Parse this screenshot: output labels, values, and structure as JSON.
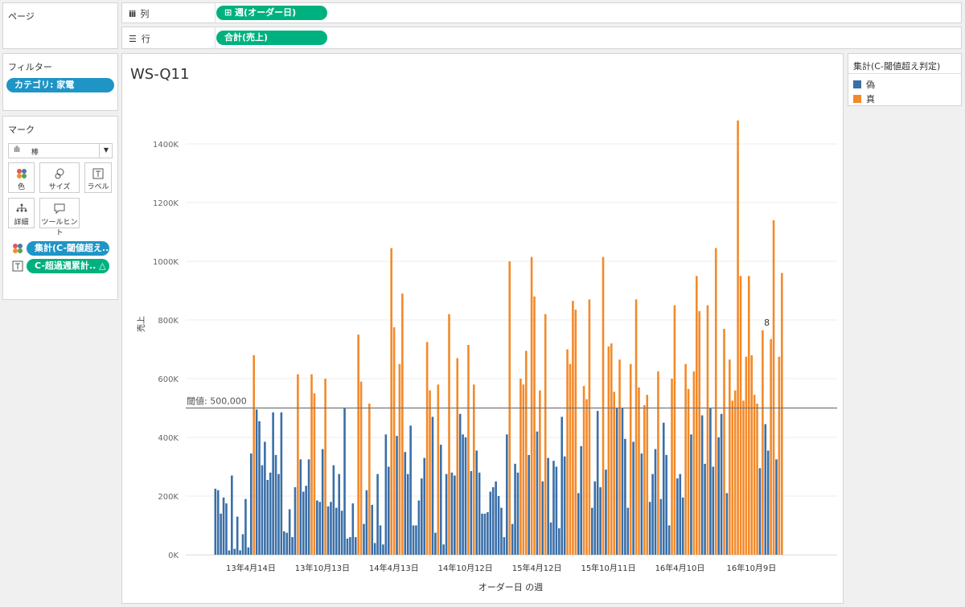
{
  "shelves": {
    "pages_label": "ページ",
    "columns_label": "列",
    "rows_label": "行",
    "column_pill": "⊞ 週(オーダー日)",
    "row_pill": "合計(売上)"
  },
  "filters": {
    "title": "フィルター",
    "pill": "カテゴリ: 家電"
  },
  "marks": {
    "title": "マーク",
    "type_value": "棒",
    "cards": [
      "色",
      "サイズ",
      "ラベル",
      "詳細",
      "ツールヒント"
    ],
    "pills": [
      "集計(C-閾値超え..",
      "C-超過週累計.. △"
    ]
  },
  "legend": {
    "title": "集計(C-閾値超え判定)",
    "items": [
      {
        "label": "偽",
        "color": "#3a6fa8"
      },
      {
        "label": "真",
        "color": "#f28a2b"
      }
    ]
  },
  "chart_data": {
    "type": "bar",
    "title": "WS-Q11",
    "xlabel": "オーダー日 の週",
    "ylabel": "売上",
    "ylim": [
      0,
      1500000
    ],
    "yticks": [
      0,
      200000,
      400000,
      600000,
      800000,
      1000000,
      1200000,
      1400000
    ],
    "ytick_labels": [
      "0K",
      "200K",
      "400K",
      "600K",
      "800K",
      "1000K",
      "1200K",
      "1400K"
    ],
    "x_tick_labels": [
      "13年4月14日",
      "13年10月13日",
      "14年4月13日",
      "14年10月12日",
      "15年4月12日",
      "15年10月11日",
      "16年4月10日",
      "16年10月9日"
    ],
    "x_tick_positions": [
      13,
      39,
      65,
      91,
      117,
      143,
      169,
      195
    ],
    "reference_line": {
      "value": 500000,
      "label": "閾値: 500,000"
    },
    "annotation": {
      "index": 199,
      "text": "8"
    },
    "series_colors": {
      "false": "#3a6fa8",
      "true": "#f28a2b"
    },
    "values": [
      225000,
      220000,
      140000,
      195000,
      175000,
      15000,
      270000,
      20000,
      130000,
      15000,
      70000,
      190000,
      25000,
      345000,
      680000,
      495000,
      455000,
      305000,
      385000,
      255000,
      280000,
      485000,
      340000,
      275000,
      485000,
      80000,
      75000,
      155000,
      60000,
      230000,
      615000,
      325000,
      215000,
      235000,
      325000,
      615000,
      550000,
      185000,
      180000,
      360000,
      600000,
      165000,
      180000,
      305000,
      160000,
      275000,
      150000,
      500000,
      55000,
      60000,
      175000,
      60000,
      750000,
      590000,
      105000,
      220000,
      515000,
      170000,
      40000,
      275000,
      100000,
      35000,
      410000,
      300000,
      1045000,
      775000,
      405000,
      650000,
      890000,
      350000,
      275000,
      440000,
      100000,
      100000,
      185000,
      260000,
      330000,
      725000,
      560000,
      470000,
      75000,
      580000,
      375000,
      35000,
      275000,
      820000,
      280000,
      270000,
      670000,
      480000,
      410000,
      400000,
      715000,
      285000,
      580000,
      355000,
      280000,
      140000,
      140000,
      145000,
      215000,
      230000,
      250000,
      200000,
      160000,
      60000,
      410000,
      1000000,
      105000,
      310000,
      280000,
      600000,
      580000,
      695000,
      340000,
      1015000,
      880000,
      420000,
      560000,
      250000,
      820000,
      330000,
      110000,
      320000,
      300000,
      90000,
      470000,
      335000,
      700000,
      650000,
      865000,
      835000,
      210000,
      370000,
      575000,
      530000,
      870000,
      160000,
      250000,
      490000,
      230000,
      1015000,
      290000,
      710000,
      720000,
      555000,
      500000,
      665000,
      500000,
      395000,
      160000,
      650000,
      385000,
      870000,
      570000,
      345000,
      510000,
      545000,
      180000,
      275000,
      360000,
      625000,
      190000,
      450000,
      340000,
      100000,
      600000,
      850000,
      260000,
      275000,
      195000,
      650000,
      565000,
      410000,
      625000,
      950000,
      830000,
      475000,
      310000,
      850000,
      500000,
      300000,
      1045000,
      400000,
      480000,
      770000,
      210000,
      665000,
      525000,
      560000,
      1480000,
      950000,
      525000,
      675000,
      950000,
      680000,
      545000,
      515000,
      295000,
      765000,
      445000,
      355000,
      735000,
      1140000,
      325000,
      675000,
      960000
    ]
  }
}
